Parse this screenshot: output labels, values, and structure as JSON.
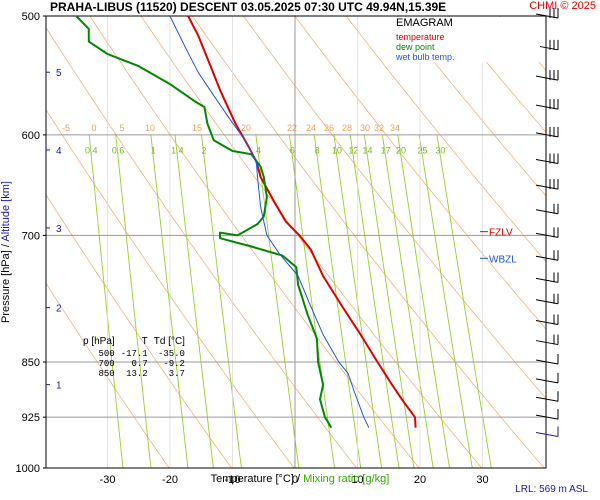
{
  "header": {
    "title": "PRAHA-LIBUS (11520)   DESCENT   03.05.2025 07:30 UTC  49.94N,15.39E",
    "copyright": "CHMI © 2025"
  },
  "legend": {
    "title": "EMAGRAM",
    "items": [
      {
        "label": "temperature",
        "color": "#e00000"
      },
      {
        "label": "dew point",
        "color": "#008800"
      },
      {
        "label": "wet bulb temp.",
        "color": "#2255dd"
      }
    ]
  },
  "axis_labels": {
    "x_temp": "Temperature [°C]  /",
    "x_mix": "Mixing ratio [g/kg]",
    "y_pressure": "Pressure [hPa]  /",
    "y_alt": "Altitude [km]",
    "lrl": "LRL: 569 m ASL"
  },
  "level_table": {
    "headers": [
      "p [hPa]",
      "T",
      "Td [°C]"
    ],
    "rows": [
      [
        "500",
        "-17.1",
        "-35.0"
      ],
      [
        "700",
        "0.7",
        "-9.2"
      ],
      [
        "850",
        "13.2",
        "3.7"
      ]
    ]
  },
  "chart_data": {
    "type": "line",
    "title": "EMAGRAM",
    "x_axis": {
      "label": "Temperature [°C]",
      "range": [
        -40,
        40
      ],
      "ticks": [
        -30,
        -20,
        -10,
        0,
        10,
        20,
        30
      ]
    },
    "y_axis": {
      "label": "Pressure [hPa]",
      "scale": "log",
      "range": [
        1000,
        500
      ],
      "ticks": [
        500,
        600,
        700,
        850,
        925,
        1000
      ]
    },
    "altitude_ticks_km": [
      {
        "km": "1",
        "p": 880
      },
      {
        "km": "2",
        "p": 782
      },
      {
        "km": "3",
        "p": 692
      },
      {
        "km": "4",
        "p": 614
      },
      {
        "km": "5",
        "p": 545
      }
    ],
    "isotherm_labels": [
      "-5",
      "0",
      "5",
      "10",
      "15",
      "20",
      "22",
      "24",
      "26",
      "28",
      "30",
      "32",
      "34"
    ],
    "mixing_ratio_labels": [
      "0.4",
      "0.6",
      "1",
      "1.4",
      "2",
      "4",
      "6",
      "8",
      "10",
      "12",
      "14",
      "17",
      "20",
      "25",
      "30"
    ],
    "mixing_ratio_values": [
      0.4,
      0.6,
      1,
      1.4,
      2,
      4,
      6,
      8,
      10,
      12,
      14,
      17,
      20,
      25,
      30
    ],
    "grid": true,
    "series": [
      {
        "name": "temperature",
        "color": "#e00000",
        "points": [
          [
            19.3,
            940
          ],
          [
            19.2,
            925
          ],
          [
            17.5,
            905
          ],
          [
            15.5,
            880
          ],
          [
            13.2,
            850
          ],
          [
            10.5,
            815
          ],
          [
            7.5,
            780
          ],
          [
            4.5,
            745
          ],
          [
            2.5,
            715
          ],
          [
            0.7,
            700
          ],
          [
            -1.5,
            685
          ],
          [
            -3.3,
            665
          ],
          [
            -5.5,
            640
          ],
          [
            -6.2,
            625
          ],
          [
            -7.5,
            610
          ],
          [
            -9.5,
            590
          ],
          [
            -12,
            560
          ],
          [
            -13.5,
            540
          ],
          [
            -15.5,
            515
          ],
          [
            -17.1,
            500
          ]
        ]
      },
      {
        "name": "dew point",
        "color": "#008800",
        "points": [
          [
            5.8,
            940
          ],
          [
            4.8,
            925
          ],
          [
            4.0,
            900
          ],
          [
            4.5,
            880
          ],
          [
            3.7,
            850
          ],
          [
            3.5,
            820
          ],
          [
            2.0,
            790
          ],
          [
            0.5,
            755
          ],
          [
            0.2,
            735
          ],
          [
            -2,
            722
          ],
          [
            -7,
            712
          ],
          [
            -12,
            703
          ],
          [
            -12,
            697
          ],
          [
            -9.2,
            700
          ],
          [
            -6,
            688
          ],
          [
            -5,
            680
          ],
          [
            -4.5,
            660
          ],
          [
            -5,
            640
          ],
          [
            -5.5,
            630
          ],
          [
            -7,
            618
          ],
          [
            -10,
            615
          ],
          [
            -13,
            605
          ],
          [
            -14,
            590
          ],
          [
            -14.5,
            575
          ],
          [
            -16,
            570
          ],
          [
            -20,
            555
          ],
          [
            -25,
            540
          ],
          [
            -30,
            530
          ],
          [
            -33,
            520
          ],
          [
            -33,
            510
          ],
          [
            -35,
            500
          ]
        ]
      },
      {
        "name": "wet bulb temp.",
        "color": "#2255dd",
        "points": [
          [
            11.8,
            940
          ],
          [
            11.0,
            925
          ],
          [
            9.5,
            890
          ],
          [
            8.5,
            865
          ],
          [
            7.0,
            850
          ],
          [
            4.5,
            815
          ],
          [
            2.5,
            780
          ],
          [
            0.5,
            745
          ],
          [
            -2.5,
            720
          ],
          [
            -4.5,
            700
          ],
          [
            -5.5,
            670
          ],
          [
            -6.0,
            640
          ],
          [
            -6.2,
            625
          ],
          [
            -8.0,
            605
          ],
          [
            -10.5,
            585
          ],
          [
            -13.0,
            565
          ],
          [
            -15.5,
            545
          ],
          [
            -17.5,
            525
          ],
          [
            -19.5,
            505
          ],
          [
            -20.0,
            500
          ]
        ]
      }
    ],
    "markers": [
      {
        "label": "FZLV",
        "p": 696,
        "color": "#e00000"
      },
      {
        "label": "WBZL",
        "p": 725,
        "color": "#2255dd"
      }
    ],
    "wind_barbs": [
      {
        "p": 500,
        "barbs": 3
      },
      {
        "p": 525,
        "barbs": 3
      },
      {
        "p": 550,
        "barbs": 3
      },
      {
        "p": 575,
        "barbs": 3
      },
      {
        "p": 600,
        "barbs": 3
      },
      {
        "p": 625,
        "barbs": 3
      },
      {
        "p": 650,
        "barbs": 3
      },
      {
        "p": 675,
        "barbs": 2
      },
      {
        "p": 700,
        "barbs": 2
      },
      {
        "p": 725,
        "barbs": 2
      },
      {
        "p": 750,
        "barbs": 2
      },
      {
        "p": 775,
        "barbs": 2
      },
      {
        "p": 800,
        "barbs": 2
      },
      {
        "p": 825,
        "barbs": 2
      },
      {
        "p": 850,
        "barbs": 1
      },
      {
        "p": 875,
        "barbs": 1
      },
      {
        "p": 900,
        "barbs": 1
      },
      {
        "p": 925,
        "barbs": 1
      },
      {
        "p": 950,
        "barbs": 1
      }
    ]
  }
}
